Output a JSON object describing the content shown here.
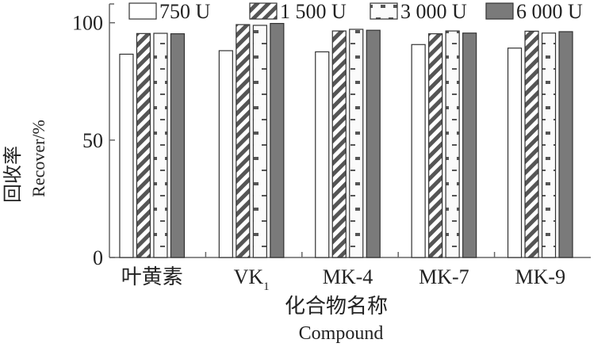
{
  "chart_data": {
    "type": "bar",
    "xlabel_cn": "化合物名称",
    "xlabel_en": "Compound",
    "ylabel_cn": "回收率",
    "ylabel_en": "Recover/%",
    "categories": [
      "叶黄素",
      "VK",
      "MK-4",
      "MK-7",
      "MK-9"
    ],
    "category_subscripts": [
      "",
      "1",
      "",
      "",
      ""
    ],
    "ylim": [
      0,
      108
    ],
    "yticks": [
      0,
      50,
      100
    ],
    "ytick_labels": [
      "0",
      "50",
      "100"
    ],
    "grid": false,
    "legend_position": "top",
    "series": [
      {
        "name": "750 U",
        "pattern": "empty",
        "color": "#ffffff",
        "values": [
          86.6,
          88.1,
          87.6,
          90.7,
          89.2
        ]
      },
      {
        "name": "1 500 U",
        "pattern": "diagonal-hatch",
        "color": "#555555",
        "values": [
          95.4,
          99.2,
          96.5,
          95.3,
          96.4
        ]
      },
      {
        "name": "3 000 U",
        "pattern": "dashes",
        "color": "#555555",
        "values": [
          95.5,
          98.9,
          97.2,
          96.5,
          95.6
        ]
      },
      {
        "name": "6 000 U",
        "pattern": "solid",
        "color": "#7a7a7a",
        "values": [
          95.3,
          99.7,
          96.8,
          95.6,
          96.2
        ]
      }
    ]
  }
}
